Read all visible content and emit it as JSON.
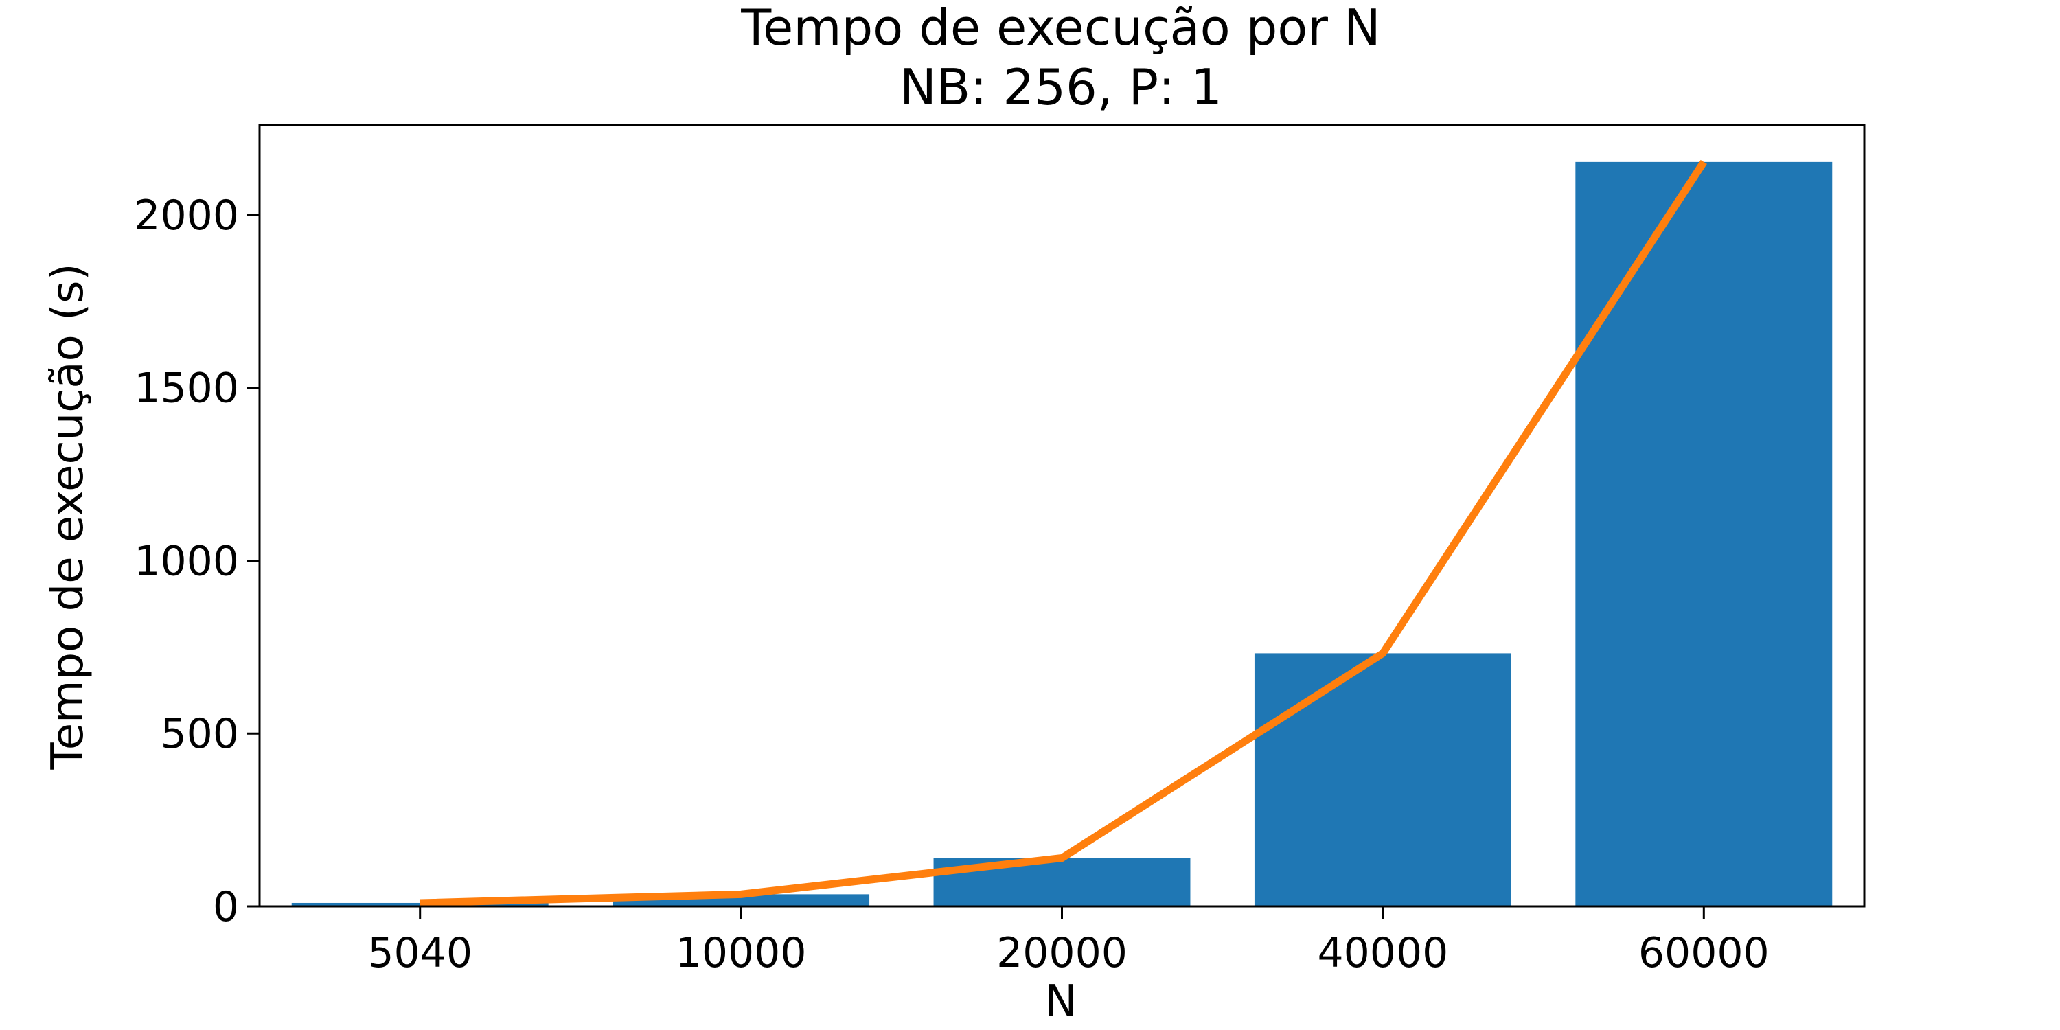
{
  "chart_data": {
    "type": "bar",
    "title": "Tempo de execução por N",
    "subtitle": "NB: 256, P: 1",
    "xlabel": "N",
    "ylabel": "Tempo de execução (s)",
    "categories": [
      "5040",
      "10000",
      "20000",
      "40000",
      "60000"
    ],
    "values": [
      10,
      35,
      140,
      732,
      2153
    ],
    "line_values": [
      10,
      35,
      140,
      732,
      2153
    ],
    "ylim": [
      0,
      2260
    ],
    "yticks": [
      0,
      500,
      1000,
      1500,
      2000
    ],
    "grid": false,
    "colors": {
      "bar": "#1f77b4",
      "line": "#ff7f0e",
      "axes": "#000000"
    }
  }
}
